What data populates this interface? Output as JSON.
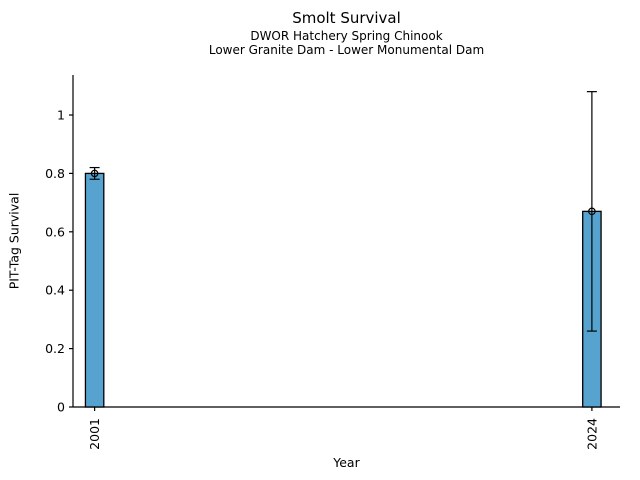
{
  "title": "Smolt Survival",
  "subtitle1": "DWOR Hatchery Spring Chinook",
  "subtitle2": "Lower Granite Dam - Lower Monumental Dam",
  "chart_data": {
    "type": "bar",
    "title": "Smolt Survival",
    "subtitles": [
      "DWOR Hatchery Spring Chinook",
      "Lower Granite Dam - Lower Monumental Dam"
    ],
    "xlabel": "Year",
    "ylabel": "PIT-Tag Survival",
    "categories": [
      "2001",
      "2024"
    ],
    "x": [
      2001,
      2024
    ],
    "values": [
      0.8,
      0.67
    ],
    "error_low": [
      0.78,
      0.26
    ],
    "error_high": [
      0.82,
      1.08
    ],
    "yticks": [
      0,
      0.2,
      0.4,
      0.6,
      0.8,
      1
    ],
    "ytick_labels": [
      "0",
      "0.2",
      "0.4",
      "0.6",
      "0.8",
      "1"
    ],
    "xlim": [
      2000,
      2025.3
    ],
    "ylim": [
      0,
      1.137
    ],
    "bar_width": 0.85,
    "bar_color": "#57a3cf",
    "edge_color": "#000000",
    "axis_color": "#000000",
    "grid": false,
    "legend_position": "none",
    "marker": "open-circle",
    "xtick_rotation_deg": 90
  }
}
